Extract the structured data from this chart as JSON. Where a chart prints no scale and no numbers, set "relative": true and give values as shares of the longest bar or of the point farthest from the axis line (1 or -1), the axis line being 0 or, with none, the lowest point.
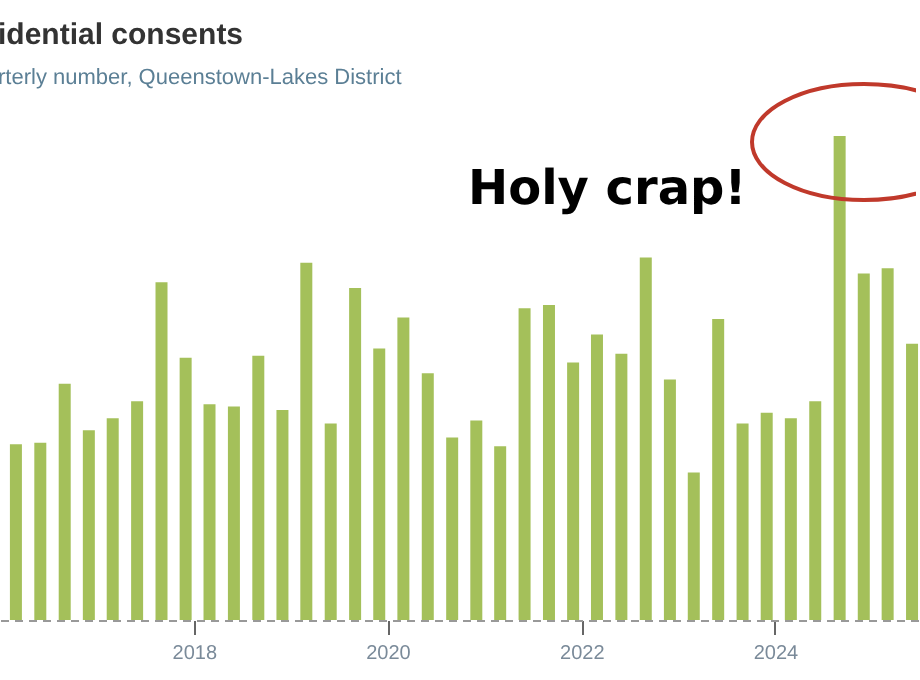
{
  "chart_data": {
    "type": "bar",
    "title": "idential consents",
    "subtitle": "rterly number, Queenstown-Lakes District",
    "annotations": [
      "Holy crap!"
    ],
    "relative": true,
    "color": "#a4c05a",
    "x": [
      "2016-03",
      "2016-06",
      "2016-09",
      "2016-12",
      "2017-03",
      "2017-06",
      "2017-09",
      "2017-12",
      "2018-03",
      "2018-06",
      "2018-09",
      "2018-12",
      "2019-03",
      "2019-06",
      "2019-09",
      "2019-12",
      "2020-03",
      "2020-06",
      "2020-09",
      "2020-12",
      "2021-03",
      "2021-06",
      "2021-09",
      "2021-12",
      "2022-03",
      "2022-06",
      "2022-09",
      "2022-12",
      "2023-03",
      "2023-06",
      "2023-09",
      "2023-12",
      "2024-03",
      "2024-06",
      "2024-09",
      "2024-12",
      "2025-03",
      "2025-06"
    ],
    "values": [
      0.363,
      0.366,
      0.488,
      0.392,
      0.417,
      0.452,
      0.698,
      0.542,
      0.446,
      0.441,
      0.546,
      0.434,
      0.738,
      0.406,
      0.686,
      0.561,
      0.625,
      0.51,
      0.377,
      0.412,
      0.359,
      0.644,
      0.651,
      0.532,
      0.59,
      0.55,
      0.749,
      0.497,
      0.305,
      0.622,
      0.406,
      0.428,
      0.417,
      0.452,
      1,
      0.716,
      0.727,
      0.571
    ],
    "xlim": [
      "2016",
      "2025-07"
    ],
    "xticks": [
      "2018",
      "2020",
      "2022",
      "2024"
    ]
  }
}
